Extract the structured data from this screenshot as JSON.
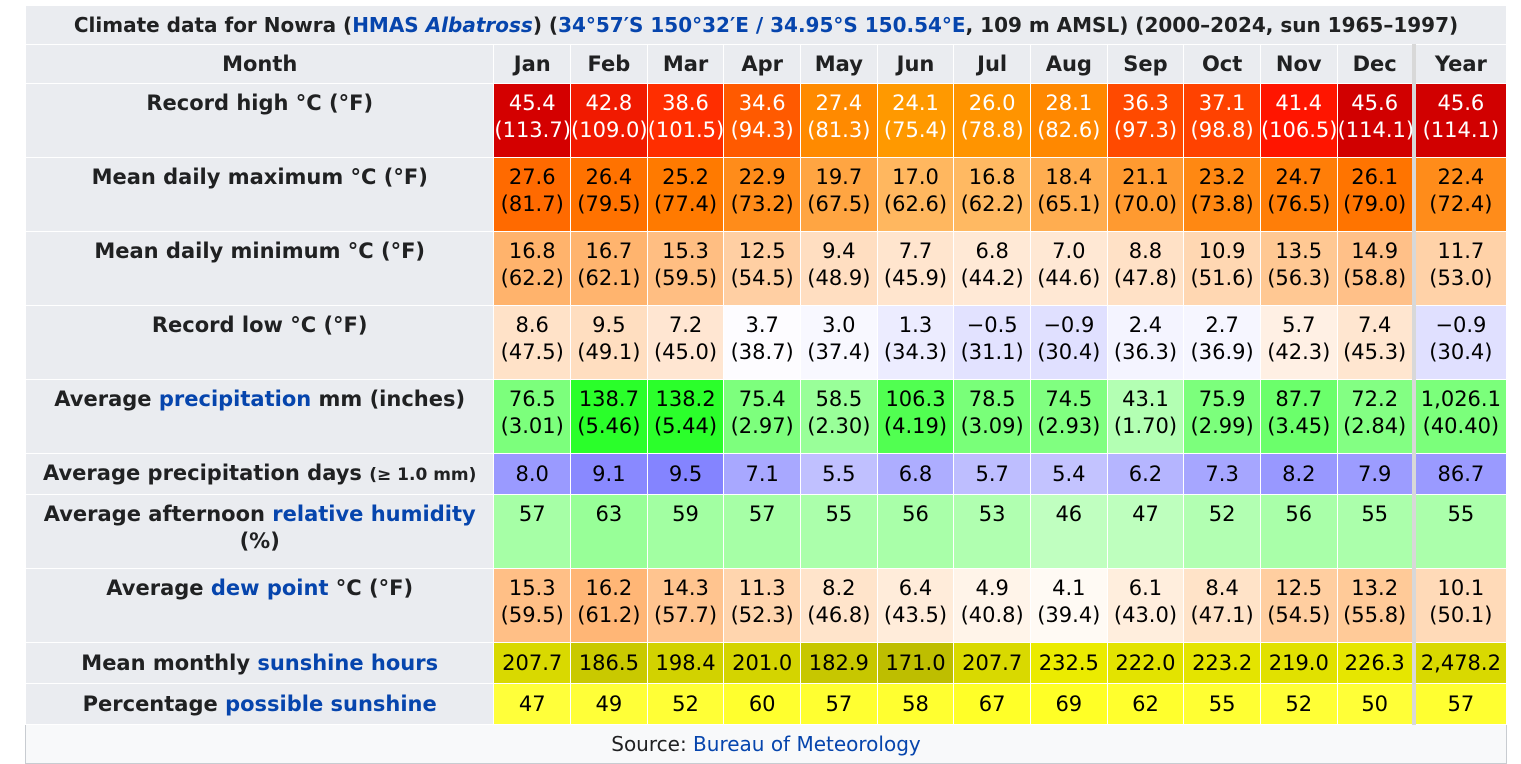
{
  "title": {
    "prefix": "Climate data for Nowra (",
    "station_link": "HMAS ",
    "station_link_italic": "Albatross",
    "mid": ") (",
    "coords_link": "34°57′S 150°32′E / 34.95°S 150.54°E",
    "suffix": ", 109 m AMSL) (2000–2024, sun 1965–1997)"
  },
  "header": {
    "month_label": "Month",
    "months": [
      "Jan",
      "Feb",
      "Mar",
      "Apr",
      "May",
      "Jun",
      "Jul",
      "Aug",
      "Sep",
      "Oct",
      "Nov",
      "Dec"
    ],
    "year_label": "Year"
  },
  "rows": [
    {
      "key": "record-high",
      "label": [
        {
          "text": "Record high °C (°F)"
        }
      ],
      "type": "dual",
      "values": [
        [
          "45.4",
          "(113.7)"
        ],
        [
          "42.8",
          "(109.0)"
        ],
        [
          "38.6",
          "(101.5)"
        ],
        [
          "34.6",
          "(94.3)"
        ],
        [
          "27.4",
          "(81.3)"
        ],
        [
          "24.1",
          "(75.4)"
        ],
        [
          "26.0",
          "(78.8)"
        ],
        [
          "28.1",
          "(82.6)"
        ],
        [
          "36.3",
          "(97.3)"
        ],
        [
          "37.1",
          "(98.8)"
        ],
        [
          "41.4",
          "(106.5)"
        ],
        [
          "45.6",
          "(114.1)"
        ]
      ],
      "year": [
        "45.6",
        "(114.1)"
      ],
      "colors": [
        "#d40000",
        "#f11a00",
        "#ff2e00",
        "#ff5a00",
        "#ff8a00",
        "#ff9900",
        "#ff9400",
        "#ff8800",
        "#ff4a00",
        "#ff4200",
        "#ff1500",
        "#d10000"
      ],
      "year_color": "#d10000",
      "light_text": true
    },
    {
      "key": "mean-max",
      "label": [
        {
          "text": "Mean daily maximum °C (°F)"
        }
      ],
      "type": "dual",
      "values": [
        [
          "27.6",
          "(81.7)"
        ],
        [
          "26.4",
          "(79.5)"
        ],
        [
          "25.2",
          "(77.4)"
        ],
        [
          "22.9",
          "(73.2)"
        ],
        [
          "19.7",
          "(67.5)"
        ],
        [
          "17.0",
          "(62.6)"
        ],
        [
          "16.8",
          "(62.2)"
        ],
        [
          "18.4",
          "(65.1)"
        ],
        [
          "21.1",
          "(70.0)"
        ],
        [
          "23.2",
          "(73.8)"
        ],
        [
          "24.7",
          "(76.5)"
        ],
        [
          "26.1",
          "(79.0)"
        ]
      ],
      "year": [
        "22.4",
        "(72.4)"
      ],
      "colors": [
        "#ff6a00",
        "#ff7200",
        "#ff7a00",
        "#ff8c1a",
        "#ffa542",
        "#ffb75f",
        "#ffb962",
        "#ffad50",
        "#ff9a30",
        "#ff8812",
        "#ff7e08",
        "#ff7400"
      ],
      "year_color": "#ff8c1a",
      "light_text": false
    },
    {
      "key": "mean-min",
      "label": [
        {
          "text": "Mean daily minimum °C (°F)"
        }
      ],
      "type": "dual",
      "values": [
        [
          "16.8",
          "(62.2)"
        ],
        [
          "16.7",
          "(62.1)"
        ],
        [
          "15.3",
          "(59.5)"
        ],
        [
          "12.5",
          "(54.5)"
        ],
        [
          "9.4",
          "(48.9)"
        ],
        [
          "7.7",
          "(45.9)"
        ],
        [
          "6.8",
          "(44.2)"
        ],
        [
          "7.0",
          "(44.6)"
        ],
        [
          "8.8",
          "(47.8)"
        ],
        [
          "10.9",
          "(51.6)"
        ],
        [
          "13.5",
          "(56.3)"
        ],
        [
          "14.9",
          "(58.8)"
        ]
      ],
      "year": [
        "11.7",
        "(53.0)"
      ],
      "colors": [
        "#ffb36c",
        "#ffb46e",
        "#ffbe82",
        "#ffcfa3",
        "#ffdec1",
        "#ffe5ce",
        "#ffe9d6",
        "#ffe8d4",
        "#ffe1c6",
        "#ffd7b2",
        "#ffc893",
        "#ffc088"
      ],
      "year_color": "#ffd2a8",
      "light_text": false
    },
    {
      "key": "record-low",
      "label": [
        {
          "text": "Record low °C (°F)"
        }
      ],
      "type": "dual",
      "values": [
        [
          "8.6",
          "(47.5)"
        ],
        [
          "9.5",
          "(49.1)"
        ],
        [
          "7.2",
          "(45.0)"
        ],
        [
          "3.7",
          "(38.7)"
        ],
        [
          "3.0",
          "(37.4)"
        ],
        [
          "1.3",
          "(34.3)"
        ],
        [
          "−0.5",
          "(31.1)"
        ],
        [
          "−0.9",
          "(30.4)"
        ],
        [
          "2.4",
          "(36.3)"
        ],
        [
          "2.7",
          "(36.9)"
        ],
        [
          "5.7",
          "(42.3)"
        ],
        [
          "7.4",
          "(45.3)"
        ]
      ],
      "year": [
        "−0.9",
        "(30.4)"
      ],
      "colors": [
        "#ffe2c8",
        "#ffdec0",
        "#ffe6d2",
        "#fdfcff",
        "#f8f8ff",
        "#ececff",
        "#e2e2ff",
        "#e0e0ff",
        "#f4f4ff",
        "#f6f6ff",
        "#fff0e4",
        "#ffe6d0"
      ],
      "year_color": "#e0e0ff",
      "light_text": false
    },
    {
      "key": "precip",
      "label": [
        {
          "text": "Average "
        },
        {
          "text": "precipitation",
          "link": true
        },
        {
          "text": " mm (inches)"
        }
      ],
      "type": "dual",
      "values": [
        [
          "76.5",
          "(3.01)"
        ],
        [
          "138.7",
          "(5.46)"
        ],
        [
          "138.2",
          "(5.44)"
        ],
        [
          "75.4",
          "(2.97)"
        ],
        [
          "58.5",
          "(2.30)"
        ],
        [
          "106.3",
          "(4.19)"
        ],
        [
          "78.5",
          "(3.09)"
        ],
        [
          "74.5",
          "(2.93)"
        ],
        [
          "43.1",
          "(1.70)"
        ],
        [
          "75.9",
          "(2.99)"
        ],
        [
          "87.7",
          "(3.45)"
        ],
        [
          "72.2",
          "(2.84)"
        ]
      ],
      "year": [
        "1,026.1",
        "(40.40)"
      ],
      "colors": [
        "#7cff7c",
        "#2aff2a",
        "#2bff2b",
        "#7dff7d",
        "#99ff99",
        "#51ff51",
        "#79ff79",
        "#80ff80",
        "#b3ffb3",
        "#7cff7c",
        "#6bff6b",
        "#83ff83"
      ],
      "year_color": "#7bff7b",
      "light_text": false
    },
    {
      "key": "precip-days",
      "label": [
        {
          "text": "Average precipitation days "
        },
        {
          "text": "(≥ 1.0 mm)",
          "small": true
        }
      ],
      "type": "single",
      "values": [
        "8.0",
        "9.1",
        "9.5",
        "7.1",
        "5.5",
        "6.8",
        "5.7",
        "5.4",
        "6.2",
        "7.3",
        "8.2",
        "7.9"
      ],
      "year": "86.7",
      "colors": [
        "#9a9aff",
        "#8989ff",
        "#8484ff",
        "#a8a8ff",
        "#c0c0ff",
        "#adadff",
        "#bebeff",
        "#c3c3ff",
        "#b5b5ff",
        "#a6a6ff",
        "#9898ff",
        "#9c9cff"
      ],
      "year_color": "#9a9aff",
      "light_text": false
    },
    {
      "key": "humidity",
      "label": [
        {
          "text": "Average afternoon "
        },
        {
          "text": "relative humidity",
          "link": true
        },
        {
          "text": " (%)"
        }
      ],
      "type": "humid",
      "values": [
        "57",
        "63",
        "59",
        "57",
        "55",
        "56",
        "53",
        "46",
        "47",
        "52",
        "56",
        "55"
      ],
      "year": "55",
      "colors": [
        "#a6ffa6",
        "#98ff98",
        "#a2ffa2",
        "#a6ffa6",
        "#abffab",
        "#a9ffa9",
        "#b0ffb0",
        "#c0ffc0",
        "#beffbe",
        "#b2ffb2",
        "#a9ffa9",
        "#abffab"
      ],
      "year_color": "#abffab",
      "light_text": false
    },
    {
      "key": "dew-point",
      "label": [
        {
          "text": "Average "
        },
        {
          "text": "dew point",
          "link": true
        },
        {
          "text": " °C (°F)"
        }
      ],
      "type": "dual",
      "values": [
        [
          "15.3",
          "(59.5)"
        ],
        [
          "16.2",
          "(61.2)"
        ],
        [
          "14.3",
          "(57.7)"
        ],
        [
          "11.3",
          "(52.3)"
        ],
        [
          "8.2",
          "(46.8)"
        ],
        [
          "6.4",
          "(43.5)"
        ],
        [
          "4.9",
          "(40.8)"
        ],
        [
          "4.1",
          "(39.4)"
        ],
        [
          "6.1",
          "(43.0)"
        ],
        [
          "8.4",
          "(47.1)"
        ],
        [
          "12.5",
          "(54.5)"
        ],
        [
          "13.2",
          "(55.8)"
        ]
      ],
      "year": [
        "10.1",
        "(50.1)"
      ],
      "colors": [
        "#ffbf86",
        "#ffb676",
        "#ffc48f",
        "#ffd5ae",
        "#ffe4cb",
        "#ffecda",
        "#fff4e9",
        "#fffaf4",
        "#ffeedd",
        "#ffe3c8",
        "#ffcea0",
        "#ffca98"
      ],
      "year_color": "#ffdab8",
      "light_text": false
    },
    {
      "key": "sunshine-hours",
      "label": [
        {
          "text": "Mean monthly "
        },
        {
          "text": "sunshine hours",
          "link": true
        }
      ],
      "type": "single",
      "values": [
        "207.7",
        "186.5",
        "198.4",
        "201.0",
        "182.9",
        "171.0",
        "207.7",
        "232.5",
        "222.0",
        "223.2",
        "219.0",
        "226.3"
      ],
      "year": "2,478.2",
      "colors": [
        "#d9d900",
        "#c9c900",
        "#d2d200",
        "#d4d400",
        "#c7c700",
        "#bebe00",
        "#d9d900",
        "#ebeb00",
        "#e3e300",
        "#e4e400",
        "#e1e100",
        "#e6e600"
      ],
      "year_color": "#d9d900",
      "light_text": false
    },
    {
      "key": "possible-sunshine",
      "label": [
        {
          "text": "Percentage "
        },
        {
          "text": "possible sunshine",
          "link": true
        }
      ],
      "type": "single",
      "values": [
        "47",
        "49",
        "52",
        "60",
        "57",
        "58",
        "67",
        "69",
        "62",
        "55",
        "52",
        "50"
      ],
      "year": "57",
      "colors": [
        "#ffff3a",
        "#ffff38",
        "#ffff36",
        "#ffff2e",
        "#ffff31",
        "#ffff30",
        "#ffff28",
        "#ffff26",
        "#ffff2d",
        "#ffff33",
        "#ffff36",
        "#ffff37"
      ],
      "year_color": "#ffff31",
      "light_text": false
    }
  ],
  "source": {
    "prefix": "Source: ",
    "link": "Bureau of Meteorology"
  }
}
